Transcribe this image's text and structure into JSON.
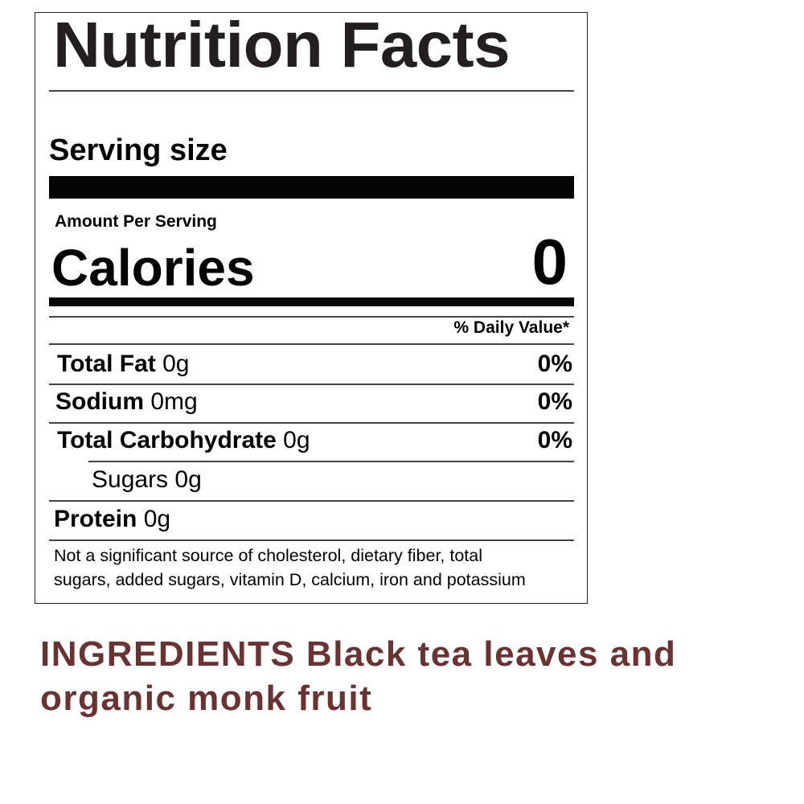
{
  "label": {
    "title": "Nutrition Facts",
    "serving_size_label": "Serving size",
    "amount_per_serving": "Amount Per Serving",
    "calories_label": "Calories",
    "calories_value": "0",
    "daily_value_header": "% Daily Value*",
    "nutrients": [
      {
        "name": "Total Fat",
        "amount": "0g",
        "dv": "0%"
      },
      {
        "name": "Sodium",
        "amount": "0mg",
        "dv": "0%"
      },
      {
        "name": "Total Carbohydrate",
        "amount": "0g",
        "dv": "0%"
      },
      {
        "name": "Sugars",
        "amount": "0g",
        "dv": ""
      },
      {
        "name": "Protein",
        "amount": "0g",
        "dv": ""
      }
    ],
    "footnote_line1": "Not a significant source of cholesterol, dietary fiber, total",
    "footnote_line2": "sugars, added sugars, vitamin D, calcium, iron and potassium"
  },
  "ingredients": {
    "line1": "INGREDIENTS  Black tea leaves and",
    "line2": "organic monk fruit",
    "color": "#6b3232"
  }
}
